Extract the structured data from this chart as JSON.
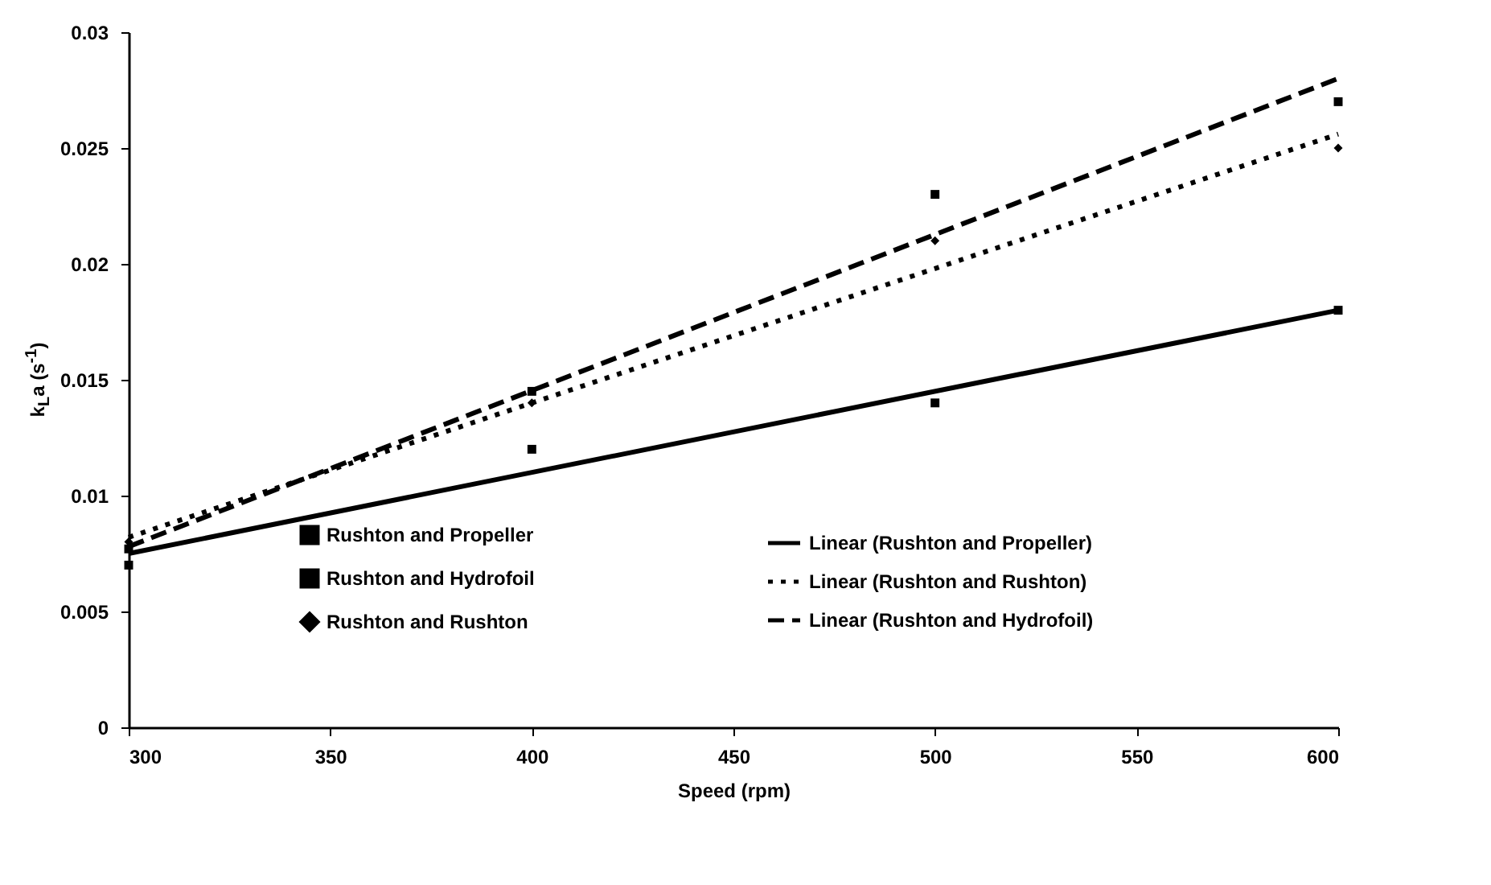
{
  "chart_data": {
    "type": "scatter",
    "xlabel": "Speed (rpm)",
    "ylabel": "k$_{L}$a (s$^{-1}$)",
    "xlim": [
      300,
      600
    ],
    "xticks": [
      300,
      350,
      400,
      450,
      500,
      550,
      600
    ],
    "ylim": [
      0,
      0.03
    ],
    "yticks": [
      0,
      0.005,
      0.01,
      0.015,
      0.02,
      0.025,
      0.03
    ],
    "grid": false,
    "legend": "bottom",
    "series": [
      {
        "name": "Rushton and Propeller",
        "type": "scatter",
        "marker": "square",
        "color": "#000000",
        "x": [
          300,
          400,
          500,
          600
        ],
        "values": [
          0.007,
          0.012,
          0.014,
          0.018
        ]
      },
      {
        "name": "Rushton and Hydrofoil",
        "type": "scatter",
        "marker": "square",
        "color": "#000000",
        "x": [
          300,
          400,
          500,
          600
        ],
        "values": [
          0.0077,
          0.0145,
          0.023,
          0.027
        ]
      },
      {
        "name": "Rushton and Rushton",
        "type": "scatter",
        "marker": "diamond",
        "color": "#000000",
        "x": [
          300,
          400,
          500,
          600
        ],
        "values": [
          0.008,
          0.014,
          0.021,
          0.025
        ]
      },
      {
        "name": "Linear (Rushton and Propeller)",
        "type": "line",
        "line_style": "solid",
        "color": "#000000",
        "x": [
          300,
          600
        ],
        "values": [
          0.0075,
          0.018
        ]
      },
      {
        "name": "Linear (Rushton and Rushton)",
        "type": "line",
        "line_style": "dotted",
        "color": "#000000",
        "x": [
          300,
          600
        ],
        "values": [
          0.0082,
          0.0256
        ]
      },
      {
        "name": "Linear (Rushton and Hydrofoil)",
        "type": "line",
        "line_style": "dashed",
        "color": "#000000",
        "x": [
          300,
          600
        ],
        "values": [
          0.0078,
          0.028
        ]
      }
    ]
  }
}
